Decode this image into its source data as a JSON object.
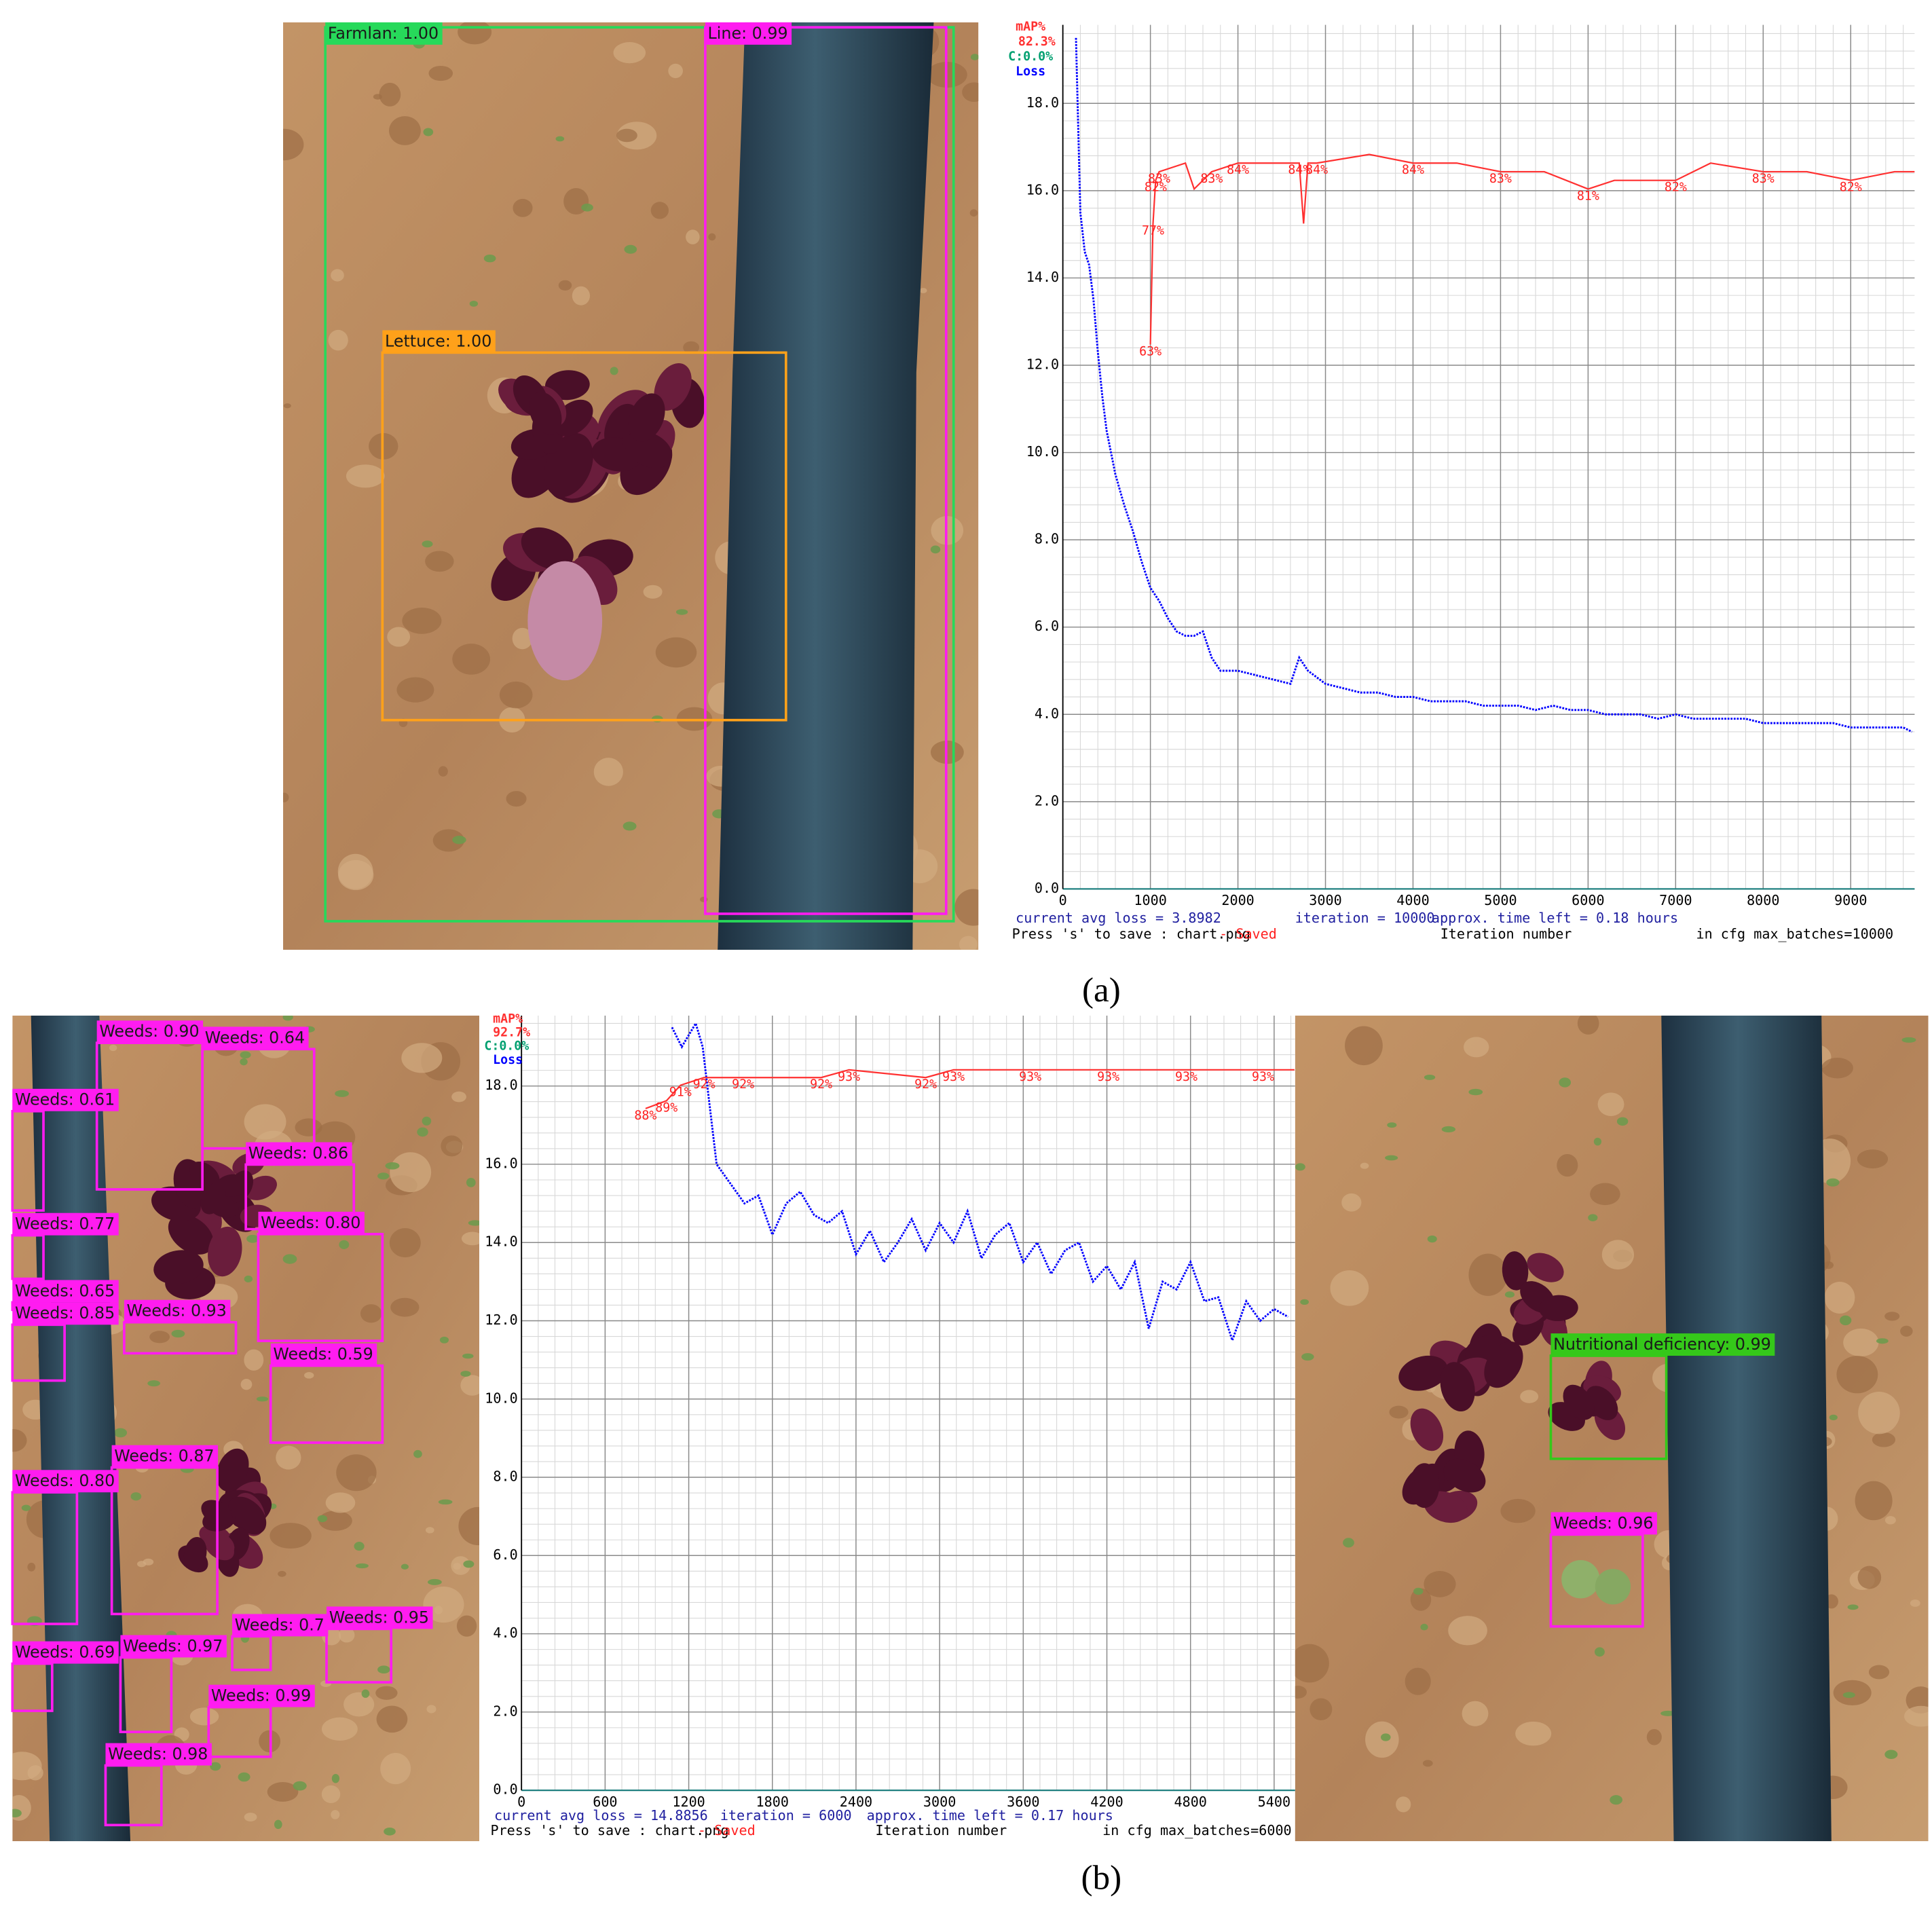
{
  "captions": [
    "(a)",
    "(b)"
  ],
  "images": [
    {
      "detections": [
        "Farmlan: 1.00",
        "Line: 0.99",
        "Lettuce: 1.00"
      ]
    },
    {
      "detections": [
        "Weeds: 0.90",
        "Weeds: 0.64",
        "Weeds: 0.61",
        "Weeds: 0.86",
        "Weeds: 0.77",
        "Weeds: 0.80",
        "Weeds: 0.65",
        "Weeds: 0.85",
        "Weeds: 0.93",
        "Weeds: 0.59",
        "Weeds: 0.87",
        "Weeds: 0.80",
        "Weeds: 0.7",
        "Weeds: 0.95",
        "Weeds: 0.69",
        "Weeds: 0.97",
        "Weeds: 0.99",
        "Weeds: 0.98"
      ]
    },
    {
      "detections": [
        "Nutritional deficiency: 0.99",
        "Weeds: 0.96"
      ]
    }
  ],
  "chart_data": [
    {
      "type": "line",
      "xlim": [
        0,
        9730
      ],
      "xticks": [
        0,
        1000,
        2000,
        3000,
        4000,
        5000,
        6000,
        7000,
        8000,
        9000
      ],
      "ylim": [
        0,
        19.8
      ],
      "yticks": [
        {
          "value": 0,
          "label": "0.0"
        },
        {
          "value": 2,
          "label": "2.0"
        },
        {
          "value": 4,
          "label": "4.0"
        },
        {
          "value": 6,
          "label": "6.0"
        },
        {
          "value": 8,
          "label": "8.0"
        },
        {
          "value": 10,
          "label": "10.0"
        },
        {
          "value": 12,
          "label": "12.0"
        },
        {
          "value": 14,
          "label": "14.0"
        },
        {
          "value": 16,
          "label": "16.0"
        },
        {
          "value": 18,
          "label": "18.0"
        }
      ],
      "y2lim": [
        0,
        100
      ],
      "grid": true,
      "map_summary": "82.3%",
      "class_note": "C:0.0%",
      "series": [
        {
          "name": "Loss",
          "color": "#0000ff",
          "x": [
            150,
            200,
            250,
            300,
            350,
            400,
            450,
            500,
            550,
            600,
            700,
            800,
            900,
            1000,
            1100,
            1200,
            1300,
            1400,
            1500,
            1600,
            1700,
            1800,
            2000,
            2200,
            2400,
            2600,
            2700,
            2800,
            3000,
            3200,
            3400,
            3600,
            3800,
            4000,
            4200,
            4400,
            4600,
            4800,
            5000,
            5200,
            5400,
            5600,
            5800,
            6000,
            6200,
            6400,
            6600,
            6800,
            7000,
            7200,
            7400,
            7600,
            7800,
            8000,
            8200,
            8400,
            8600,
            8800,
            9000,
            9200,
            9400,
            9600,
            9700
          ],
          "values": [
            19.5,
            15.5,
            14.6,
            14.3,
            13.5,
            12.3,
            11.3,
            10.5,
            10.0,
            9.5,
            8.8,
            8.2,
            7.5,
            6.9,
            6.6,
            6.2,
            5.9,
            5.8,
            5.8,
            5.9,
            5.3,
            5.0,
            5.0,
            4.9,
            4.8,
            4.7,
            5.3,
            5.0,
            4.7,
            4.6,
            4.5,
            4.5,
            4.4,
            4.4,
            4.3,
            4.3,
            4.3,
            4.2,
            4.2,
            4.2,
            4.1,
            4.2,
            4.1,
            4.1,
            4.0,
            4.0,
            4.0,
            3.9,
            4.0,
            3.9,
            3.9,
            3.9,
            3.9,
            3.8,
            3.8,
            3.8,
            3.8,
            3.8,
            3.7,
            3.7,
            3.7,
            3.7,
            3.6
          ]
        },
        {
          "name": "mAP%",
          "color": "#ff3030",
          "axis": "y2",
          "x": [
            1000,
            1030,
            1060,
            1100,
            1400,
            1500,
            1700,
            2000,
            2400,
            2700,
            2750,
            2800,
            2900,
            3500,
            4000,
            4500,
            5000,
            5500,
            6000,
            6300,
            6500,
            7000,
            7400,
            8000,
            8500,
            9000,
            9500,
            9730
          ],
          "values": [
            63,
            77,
            82,
            83,
            84,
            81,
            83,
            84,
            84,
            84,
            77,
            84,
            84,
            85,
            84,
            84,
            83,
            83,
            81,
            82,
            82,
            82,
            84,
            83,
            83,
            82,
            83,
            83
          ],
          "value_labels": [
            "63%",
            "77%",
            "82%",
            "83%",
            null,
            null,
            "83%",
            "84%",
            null,
            "84%",
            null,
            null,
            "84%",
            null,
            "84%",
            null,
            "83%",
            null,
            "81%",
            null,
            null,
            "82%",
            null,
            "83%",
            null,
            "82%",
            null,
            null
          ]
        }
      ],
      "status": {
        "loss": "current avg loss = 3.8982",
        "iteration": "iteration = 10000",
        "time_left": "approx. time left = 0.18 hours",
        "save": "Press 's' to save : chart.png",
        "saved": "- Saved",
        "xlabel": "Iteration number",
        "max_batches": "in cfg max_batches=10000"
      }
    },
    {
      "type": "line",
      "xlim": [
        0,
        5550
      ],
      "xticks": [
        0,
        600,
        1200,
        1800,
        2400,
        3000,
        3600,
        4200,
        4800,
        5400
      ],
      "ylim": [
        0,
        19.8
      ],
      "yticks": [
        {
          "value": 0,
          "label": "0.0"
        },
        {
          "value": 2,
          "label": "2.0"
        },
        {
          "value": 4,
          "label": "4.0"
        },
        {
          "value": 6,
          "label": "6.0"
        },
        {
          "value": 8,
          "label": "8.0"
        },
        {
          "value": 10,
          "label": "10.0"
        },
        {
          "value": 12,
          "label": "12.0"
        },
        {
          "value": 14,
          "label": "14.0"
        },
        {
          "value": 16,
          "label": "16.0"
        },
        {
          "value": 18,
          "label": "18.0"
        }
      ],
      "y2lim": [
        0,
        100
      ],
      "grid": true,
      "map_summary": "92.7%",
      "class_note": "C:0.0%",
      "series": [
        {
          "name": "Loss",
          "color": "#0000ff",
          "x": [
            1080,
            1150,
            1250,
            1300,
            1350,
            1400,
            1500,
            1600,
            1700,
            1800,
            1900,
            2000,
            2100,
            2200,
            2300,
            2400,
            2500,
            2600,
            2700,
            2800,
            2900,
            3000,
            3100,
            3200,
            3300,
            3400,
            3500,
            3600,
            3700,
            3800,
            3900,
            4000,
            4100,
            4200,
            4300,
            4400,
            4500,
            4600,
            4700,
            4800,
            4900,
            5000,
            5100,
            5200,
            5300,
            5400,
            5500
          ],
          "values": [
            19.5,
            19.0,
            19.6,
            19.0,
            17.5,
            16.0,
            15.5,
            15.0,
            15.2,
            14.2,
            15.0,
            15.3,
            14.7,
            14.5,
            14.8,
            13.7,
            14.3,
            13.5,
            14.0,
            14.6,
            13.8,
            14.5,
            14.0,
            14.8,
            13.6,
            14.2,
            14.5,
            13.5,
            14.0,
            13.2,
            13.8,
            14.0,
            13.0,
            13.4,
            12.8,
            13.5,
            11.8,
            13.0,
            12.8,
            13.5,
            12.5,
            12.6,
            11.5,
            12.5,
            12.0,
            12.3,
            12.1
          ]
        },
        {
          "name": "mAP%",
          "color": "#ff3030",
          "axis": "y2",
          "x": [
            890,
            1040,
            1140,
            1310,
            1590,
            2150,
            2350,
            2900,
            3100,
            3650,
            4210,
            4770,
            5320,
            5546
          ],
          "values": [
            88,
            89,
            91,
            92,
            92,
            92,
            93,
            92,
            93,
            93,
            93,
            93,
            93,
            93
          ],
          "value_labels": [
            "88%",
            "89%",
            "91%",
            "92%",
            "92%",
            "92%",
            "93%",
            "92%",
            "93%",
            "93%",
            "93%",
            "93%",
            "93%",
            null
          ]
        }
      ],
      "status": {
        "loss": "current avg loss = 14.8856",
        "iteration": "iteration = 6000",
        "time_left": "approx. time left = 0.17 hours",
        "save": "Press 's' to save : chart.png",
        "saved": "- Saved",
        "xlabel": "Iteration number",
        "max_batches": "in cfg max_batches=6000"
      }
    }
  ]
}
